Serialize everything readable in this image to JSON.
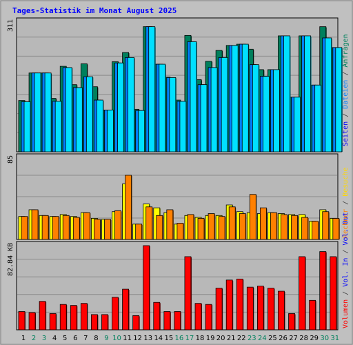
{
  "chart_data": [
    {
      "type": "bar",
      "title": "Tages-Statistik im Monat August 2025",
      "ymax_label": "311",
      "ylim": [
        0,
        311
      ],
      "categories": [
        "1",
        "2",
        "3",
        "4",
        "5",
        "6",
        "7",
        "8",
        "9",
        "10",
        "11",
        "12",
        "13",
        "14",
        "15",
        "16",
        "17",
        "18",
        "19",
        "20",
        "21",
        "22",
        "23",
        "24",
        "25",
        "26",
        "27",
        "28",
        "29",
        "30",
        "31"
      ],
      "weekend_days": [
        "2",
        "3",
        "9",
        "10",
        "16",
        "17",
        "23",
        "24",
        "30",
        "31"
      ],
      "right_labels": [
        "Anfragen",
        "Dateien",
        "Seiten"
      ],
      "series": [
        {
          "name": "Anfragen",
          "color": "#00805c",
          "values": [
            123,
            189,
            189,
            128,
            205,
            161,
            211,
            156,
            100,
            216,
            238,
            102,
            300,
            210,
            179,
            124,
            279,
            173,
            217,
            243,
            255,
            258,
            246,
            197,
            197,
            278,
            131,
            278,
            160,
            300,
            250
          ]
        },
        {
          "name": "Dateien",
          "color": "#0080ff",
          "values": [
            120,
            189,
            189,
            121,
            202,
            154,
            180,
            124,
            100,
            213,
            226,
            99,
            300,
            210,
            178,
            121,
            264,
            161,
            202,
            226,
            255,
            258,
            209,
            181,
            197,
            278,
            131,
            278,
            160,
            273,
            250
          ]
        },
        {
          "name": "Seiten",
          "color": "#00e0ff",
          "values": [
            120,
            189,
            189,
            121,
            202,
            154,
            180,
            124,
            100,
            213,
            226,
            99,
            300,
            210,
            178,
            121,
            264,
            161,
            202,
            226,
            255,
            258,
            209,
            181,
            197,
            278,
            131,
            278,
            160,
            273,
            250
          ]
        }
      ]
    },
    {
      "type": "bar",
      "ymax_label": "85",
      "ylim": [
        0,
        85
      ],
      "right_labels": [
        "Anfragen",
        "Besuche",
        "Rechner"
      ],
      "series": [
        {
          "name": "Besuche",
          "color": "#ffff00",
          "values": [
            24,
            31,
            25,
            24,
            26,
            24,
            28,
            22,
            21,
            29,
            58,
            16,
            37,
            33,
            28,
            16,
            25,
            23,
            25,
            25,
            36,
            29,
            28,
            27,
            28,
            27,
            26,
            26,
            19,
            31,
            22
          ]
        },
        {
          "name": "Rechner",
          "color": "#ff8000",
          "values": [
            24,
            31,
            25,
            24,
            25,
            23,
            28,
            21,
            21,
            30,
            67,
            16,
            34,
            25,
            31,
            17,
            26,
            22,
            27,
            24,
            34,
            27,
            47,
            33,
            28,
            26,
            25,
            23,
            19,
            29,
            22
          ]
        }
      ]
    },
    {
      "type": "bar",
      "ymax_label": "82.84 KB",
      "ylim": [
        0,
        82.84
      ],
      "right_labels": [
        "Volumen",
        "Vol. In",
        "Vol. Out"
      ],
      "series": [
        {
          "name": "Volumen",
          "color": "#ff0000",
          "values": [
            18,
            17,
            28,
            16,
            25,
            24,
            26,
            15,
            15,
            32,
            40,
            14,
            82.84,
            27,
            18,
            18,
            72,
            26,
            25,
            41,
            49,
            50,
            42,
            43,
            41,
            38,
            16,
            72,
            29,
            77,
            72
          ]
        }
      ]
    }
  ]
}
